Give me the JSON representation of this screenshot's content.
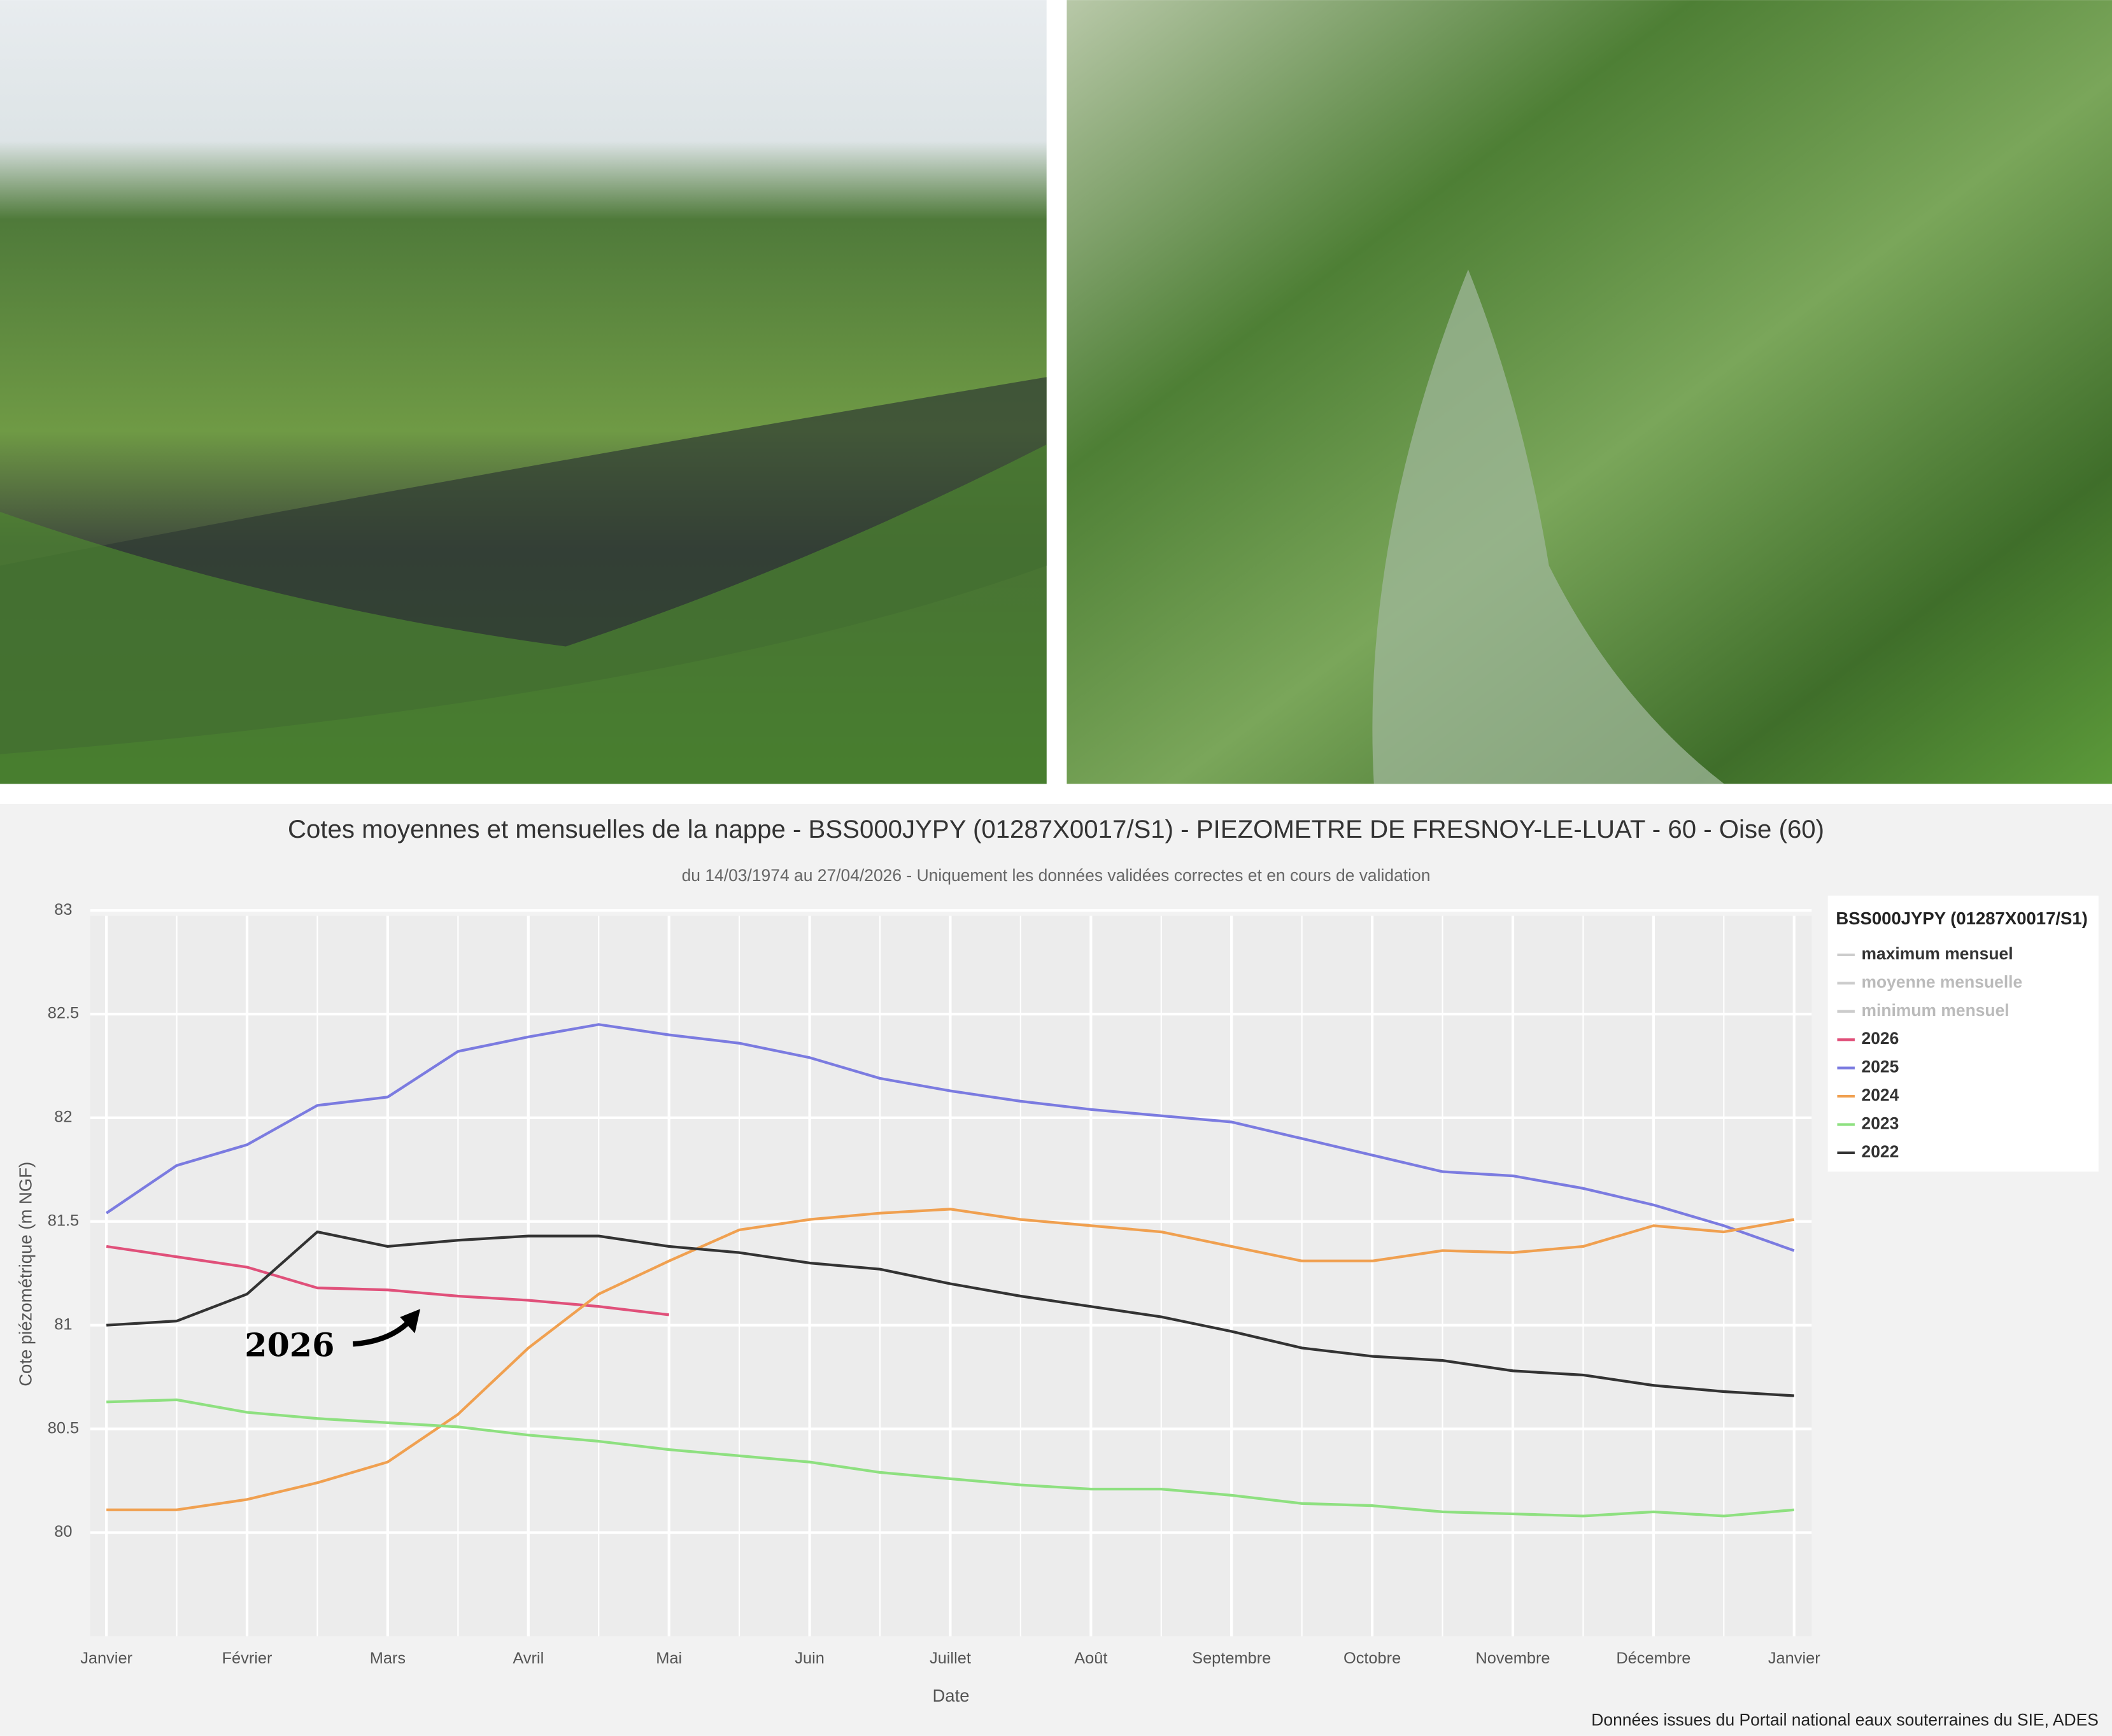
{
  "chart_data": {
    "type": "line",
    "title": "Cotes moyennes et mensuelles de la nappe - BSS000JYPY (01287X0017/S1) - PIEZOMETRE DE FRESNOY-LE-LUAT - 60 - Oise (60)",
    "subtitle": "du 14/03/1974 au 27/04/2026 - Uniquement les données validées correctes et en cours de validation",
    "x_label": "Date",
    "y_label": "Cote piézométrique (m NGF)",
    "source": "Données issues du Portail national eaux souterraines du SIE, ADES",
    "annotation": "2026",
    "categories": [
      "Janvier",
      null,
      "Février",
      null,
      "Mars",
      null,
      "Avril",
      null,
      "Mai",
      null,
      "Juin",
      null,
      "Juillet",
      null,
      "Août",
      null,
      "Septembre",
      null,
      "Octobre",
      null,
      "Novembre",
      null,
      "Décembre",
      null,
      "Janvier"
    ],
    "ylim": [
      79.5,
      83
    ],
    "yticks": [
      80,
      80.5,
      81,
      81.5,
      82,
      82.5,
      83
    ],
    "grid": true,
    "legend": {
      "title": "BSS000JYPY (01287X0017/S1)",
      "position": "right",
      "inactive": [
        "maximum mensuel",
        "moyenne mensuelle",
        "minimum mensuel"
      ]
    },
    "series": [
      {
        "name": "2026",
        "color": "#e0507a",
        "values": [
          81.38,
          81.33,
          81.28,
          81.18,
          81.17,
          81.14,
          81.12,
          81.09,
          81.05,
          null,
          null,
          null,
          null,
          null,
          null,
          null,
          null,
          null,
          null,
          null,
          null,
          null,
          null,
          null,
          null
        ]
      },
      {
        "name": "2025",
        "color": "#7b7be0",
        "values": [
          81.54,
          81.77,
          81.87,
          82.06,
          82.1,
          82.32,
          82.39,
          82.45,
          82.4,
          82.36,
          82.29,
          82.19,
          82.13,
          82.08,
          82.04,
          82.01,
          81.98,
          81.9,
          81.82,
          81.74,
          81.72,
          81.66,
          81.58,
          81.48,
          81.36
        ]
      },
      {
        "name": "2024",
        "color": "#f0a050",
        "values": [
          80.11,
          80.11,
          80.16,
          80.24,
          80.34,
          80.57,
          80.89,
          81.15,
          81.31,
          81.46,
          81.51,
          81.54,
          81.56,
          81.51,
          81.48,
          81.45,
          81.38,
          81.31,
          81.31,
          81.36,
          81.35,
          81.38,
          81.48,
          81.45,
          81.51
        ]
      },
      {
        "name": "2023",
        "color": "#8ee080",
        "values": [
          80.63,
          80.64,
          80.58,
          80.55,
          80.53,
          80.51,
          80.47,
          80.44,
          80.4,
          80.37,
          80.34,
          80.29,
          80.26,
          80.23,
          80.21,
          80.21,
          80.18,
          80.14,
          80.13,
          80.1,
          80.09,
          80.08,
          80.1,
          80.08,
          80.11
        ]
      },
      {
        "name": "2022",
        "color": "#333333",
        "values": [
          81.0,
          81.02,
          81.15,
          81.45,
          81.38,
          81.41,
          81.43,
          81.43,
          81.38,
          81.35,
          81.3,
          81.27,
          81.2,
          81.14,
          81.09,
          81.04,
          80.97,
          80.89,
          80.85,
          80.83,
          80.78,
          80.76,
          80.71,
          80.68,
          80.66
        ]
      }
    ]
  }
}
